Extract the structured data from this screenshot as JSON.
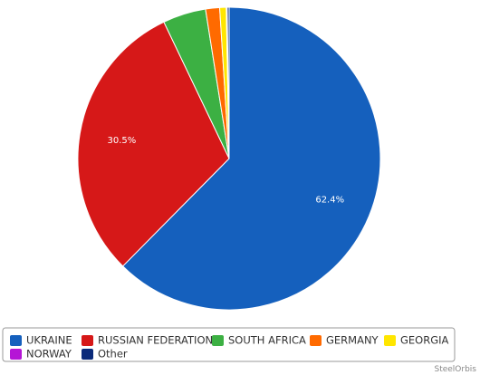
{
  "chart_data": {
    "type": "pie",
    "title": "",
    "slices": [
      {
        "name": "UKRAINE",
        "value": 62.4,
        "label": "62.4%",
        "color": "#1560bd"
      },
      {
        "name": "RUSSIAN FEDERATION",
        "value": 30.5,
        "label": "30.5%",
        "color": "#d61818"
      },
      {
        "name": "SOUTH AFRICA",
        "value": 4.6,
        "label": "",
        "color": "#3cb043"
      },
      {
        "name": "GERMANY",
        "value": 1.5,
        "label": "",
        "color": "#ff6a00"
      },
      {
        "name": "GEORGIA",
        "value": 0.7,
        "label": "",
        "color": "#ffe600"
      },
      {
        "name": "NORWAY",
        "value": 0.1,
        "label": "",
        "color": "#b515d6"
      },
      {
        "name": "Other",
        "value": 0.2,
        "label": "",
        "color": "#0a2a7a"
      }
    ],
    "legend_position": "bottom",
    "credit": "SteelOrbis"
  }
}
